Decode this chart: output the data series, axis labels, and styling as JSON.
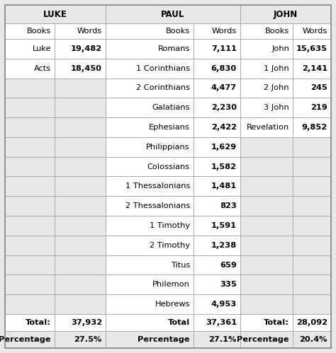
{
  "sections": [
    "LUKE",
    "PAUL",
    "JOHN"
  ],
  "luke_books": [
    "Luke",
    "Acts"
  ],
  "luke_words": [
    "19,482",
    "18,450"
  ],
  "paul_books": [
    "Romans",
    "1 Corinthians",
    "2 Corinthians",
    "Galatians",
    "Ephesians",
    "Philippians",
    "Colossians",
    "1 Thessalonians",
    "2 Thessalonians",
    "1 Timothy",
    "2 Timothy",
    "Titus",
    "Philemon",
    "Hebrews"
  ],
  "paul_words": [
    "7,111",
    "6,830",
    "4,477",
    "2,230",
    "2,422",
    "1,629",
    "1,582",
    "1,481",
    "823",
    "1,591",
    "1,238",
    "659",
    "335",
    "4,953"
  ],
  "john_books": [
    "John",
    "1 John",
    "2 John",
    "3 John",
    "Revelation"
  ],
  "john_words": [
    "15,635",
    "2,141",
    "245",
    "219",
    "9,852"
  ],
  "luke_total": "37,932",
  "paul_total": "37,361",
  "john_total": "28,092",
  "luke_pct": "27.5%",
  "paul_pct": "27.1%",
  "john_pct": "20.4%",
  "bg_color": "#e8e8e8",
  "cell_white": "#ffffff",
  "cell_gray": "#e8e8e8",
  "border_color": "#aaaaaa",
  "outer_border": "#888888"
}
